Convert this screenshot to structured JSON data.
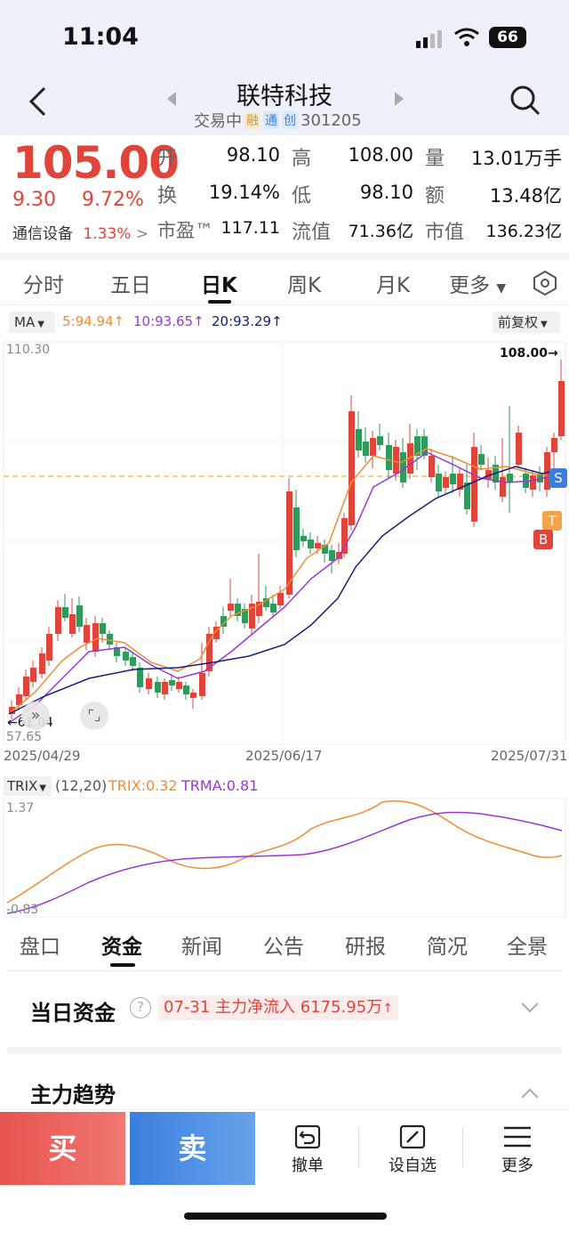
{
  "status": {
    "time": "11:04",
    "battery": "66"
  },
  "header": {
    "title": "联特科技",
    "status": "交易中",
    "tags": [
      "融",
      "通",
      "创"
    ],
    "code": "301205"
  },
  "quote": {
    "price": "105.00",
    "change": "9.30",
    "change_pct": "9.72%",
    "industry": "通信设备",
    "industry_pct": "1.33%",
    "fields": [
      {
        "label": "开",
        "value": "98.10"
      },
      {
        "label": "高",
        "value": "108.00"
      },
      {
        "label": "量",
        "value": "13.01万手"
      },
      {
        "label": "换",
        "value": "19.14%"
      },
      {
        "label": "低",
        "value": "98.10"
      },
      {
        "label": "额",
        "value": "13.48亿"
      },
      {
        "label": "市盈™",
        "value": "117.11"
      },
      {
        "label": "流值",
        "value": "71.36亿"
      },
      {
        "label": "市值",
        "value": "136.23亿"
      }
    ]
  },
  "tabs": [
    "分时",
    "五日",
    "日K",
    "周K",
    "月K",
    "更多"
  ],
  "ma": {
    "label": "MA",
    "ma5": "5:94.94",
    "ma10": "10:93.65",
    "ma20": "20:93.29",
    "adjust": "前复权"
  },
  "kchart": {
    "max_label": "110.30",
    "min_label": "57.65",
    "high_tag": "108.00",
    "low_tag": "61.04",
    "dates": [
      "2025/04/29",
      "2025/06/17",
      "2025/07/31"
    ],
    "markers": [
      "S",
      "T",
      "B"
    ]
  },
  "trix": {
    "label": "TRIX",
    "params": "(12,20)",
    "trix": "TRIX:0.32",
    "trma": "TRMA:0.81",
    "max_label": "1.37",
    "min_label": "-0.83"
  },
  "bottom_tabs": [
    "盘口",
    "资金",
    "新闻",
    "公告",
    "研报",
    "简况",
    "全景"
  ],
  "funds": {
    "title": "当日资金",
    "info": "07-31 主力净流入 6175.95万"
  },
  "trend": {
    "title": "主力趋势"
  },
  "actions": {
    "buy": "买",
    "sell": "卖",
    "cancel": "撤单",
    "watch": "设自选",
    "more": "更多"
  },
  "colors": {
    "up": "#e0443b",
    "down": "#2e9a5e",
    "ma5": "#f08c34",
    "ma10": "#9b36d8",
    "ma20": "#13207a",
    "buy": "#e85450",
    "sell": "#3a7fde"
  }
}
